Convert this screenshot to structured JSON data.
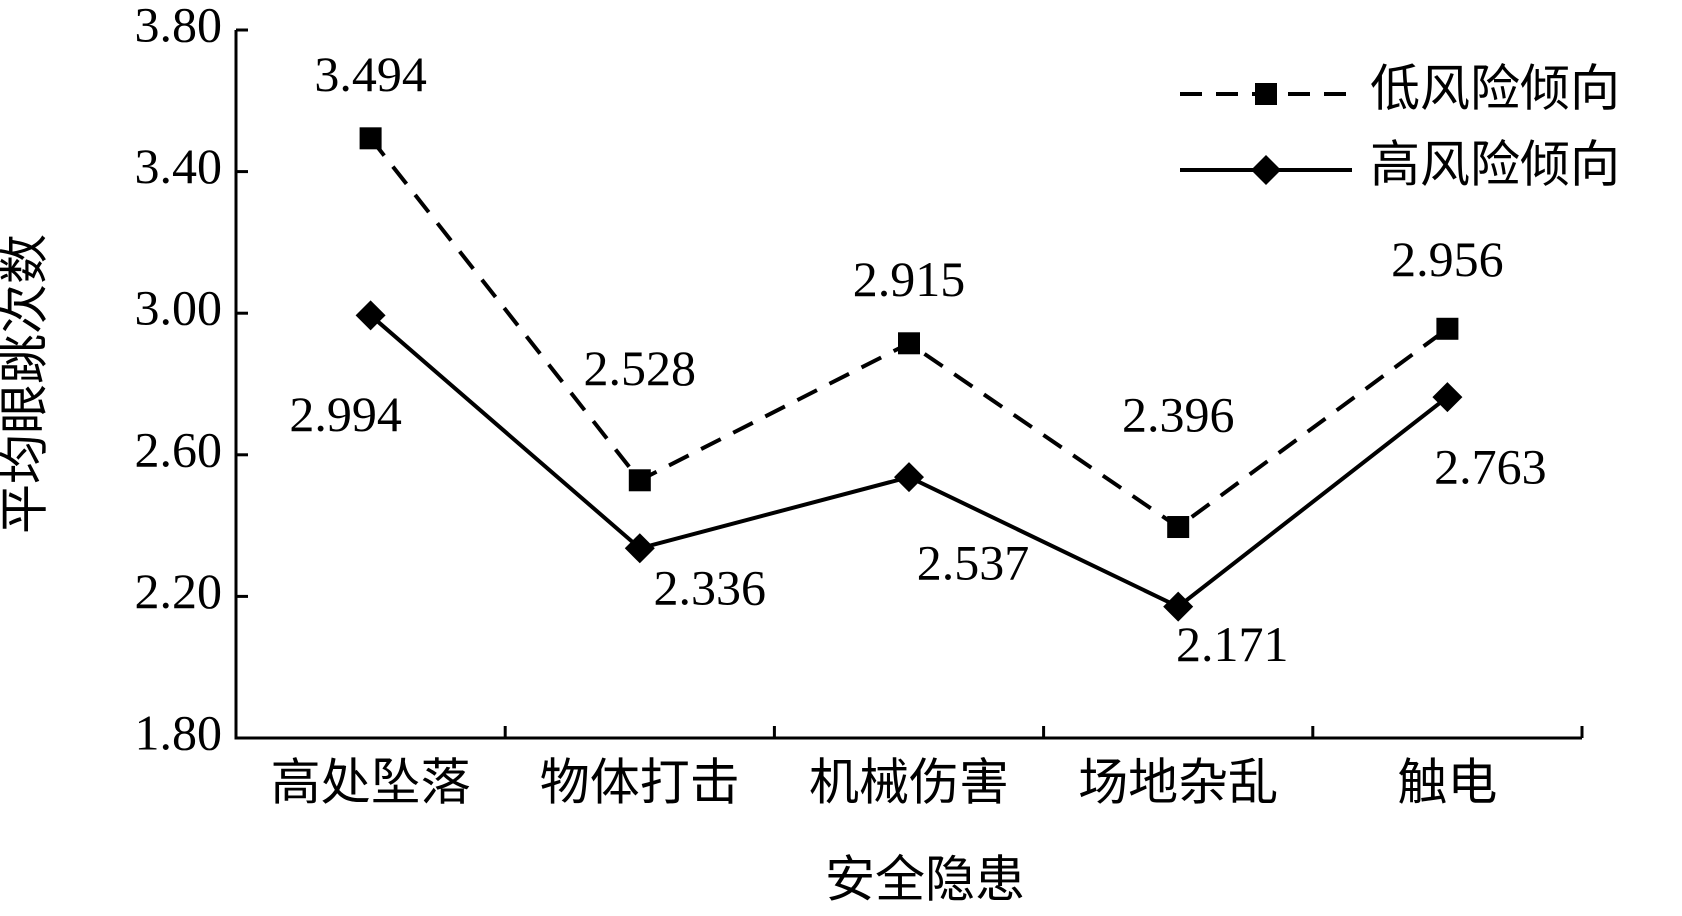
{
  "chart_data": {
    "type": "line",
    "x_label": "安全隐患",
    "y_label": "平均眼跳次数",
    "categories": [
      "高处坠落",
      "物体打击",
      "机械伤害",
      "场地杂乱",
      "触电"
    ],
    "series": [
      {
        "name": "低风险倾向",
        "color": "#000000",
        "style": "dashed",
        "marker": "square",
        "values": [
          3.494,
          2.528,
          2.915,
          2.396,
          2.956
        ]
      },
      {
        "name": "高风险倾向",
        "color": "#000000",
        "style": "solid",
        "marker": "diamond",
        "values": [
          2.994,
          2.336,
          2.537,
          2.171,
          2.763
        ]
      }
    ],
    "ylim": [
      1.8,
      3.8
    ],
    "yticks": [
      {
        "value": 1.8,
        "label": "1.80"
      },
      {
        "value": 2.2,
        "label": "2.20"
      },
      {
        "value": 2.6,
        "label": "2.60"
      },
      {
        "value": 3.0,
        "label": "3.00"
      },
      {
        "value": 3.4,
        "label": "3.40"
      },
      {
        "value": 3.8,
        "label": "3.80"
      }
    ],
    "legend": "top-right",
    "grid": false
  }
}
